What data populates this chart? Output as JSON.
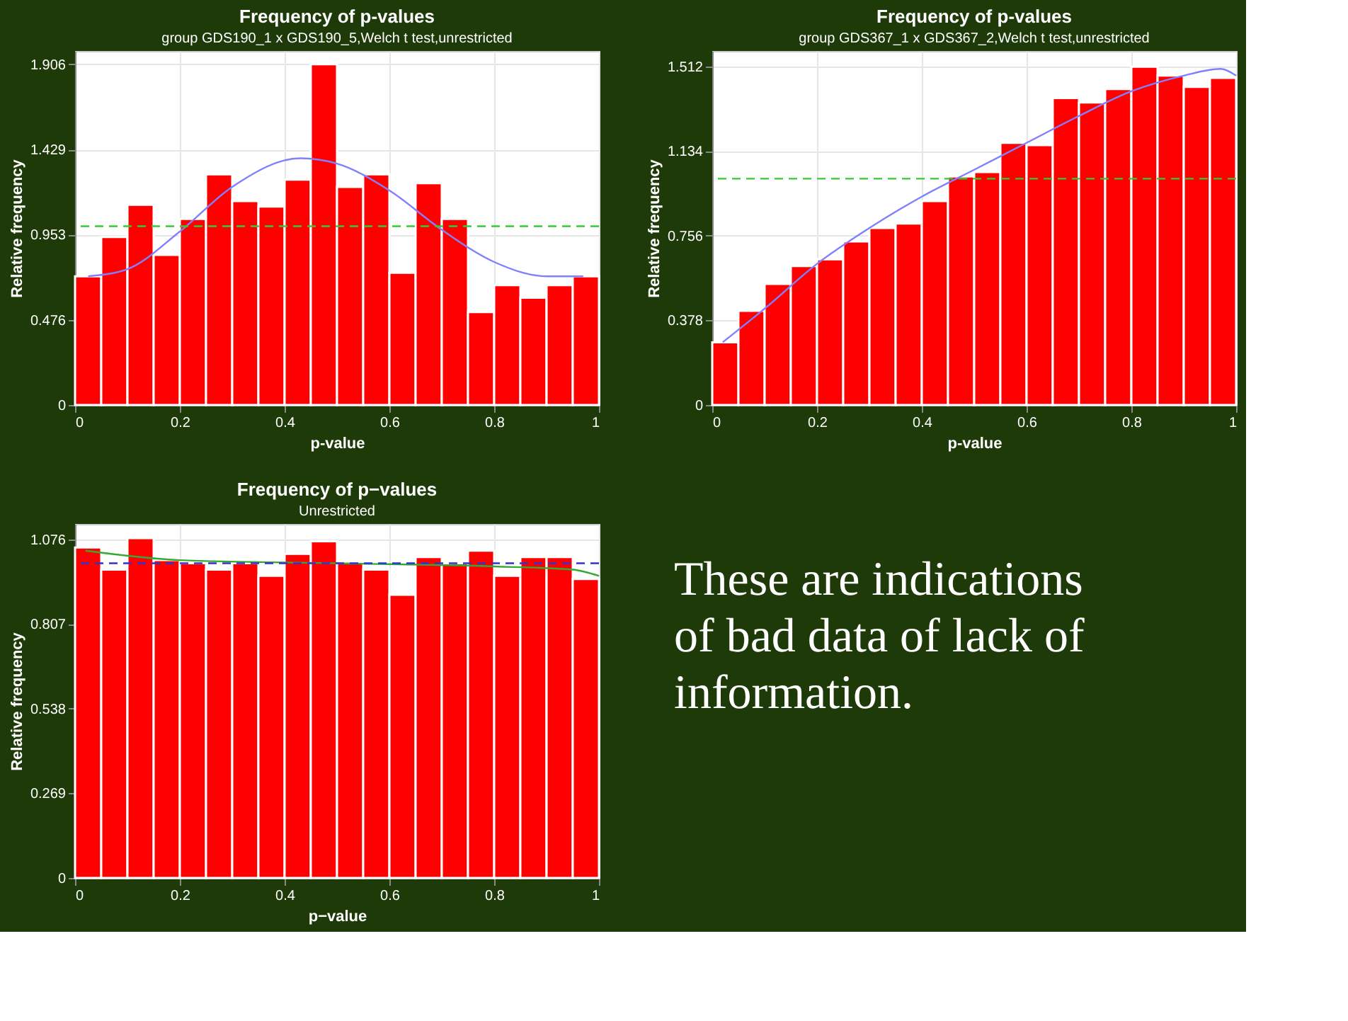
{
  "chart_data": [
    {
      "type": "histogram",
      "title": "Frequency of p-values",
      "subtitle": "group GDS190_1 x GDS190_5,Welch t test,unrestricted",
      "xlabel": "p-value",
      "ylabel": "Relative frequency",
      "bins": [
        0,
        0.05,
        0.1,
        0.15,
        0.2,
        0.25,
        0.3,
        0.35,
        0.4,
        0.45,
        0.5,
        0.55,
        0.6,
        0.65,
        0.7,
        0.75,
        0.8,
        0.85,
        0.9,
        0.95,
        1
      ],
      "series": [
        {
          "type": "histogram",
          "color": "#ff0000",
          "values": [
            0.72,
            0.94,
            1.12,
            0.84,
            1.04,
            1.29,
            1.14,
            1.11,
            1.26,
            1.906,
            1.22,
            1.29,
            0.74,
            1.24,
            1.04,
            0.52,
            0.67,
            0.6,
            0.67,
            0.72
          ]
        },
        {
          "type": "line",
          "color": "#8080ff",
          "x": [
            0.025,
            0.1,
            0.2,
            0.3,
            0.43,
            0.5,
            0.6,
            0.7,
            0.8,
            0.9,
            0.97
          ],
          "values": [
            0.72,
            0.76,
            0.97,
            1.22,
            1.38,
            1.35,
            1.2,
            0.98,
            0.8,
            0.72,
            0.72
          ]
        }
      ],
      "ref_lines": [
        {
          "axis": "y",
          "value": 1.0,
          "color": "#33cc33",
          "line_style": "dashed"
        }
      ],
      "xlim": [
        0,
        1
      ],
      "xticks": [
        0,
        0.2,
        0.4,
        0.6,
        0.8,
        1
      ],
      "ylim": [
        0,
        1.98
      ],
      "yticks": [
        0,
        0.476,
        0.953,
        1.429,
        1.906
      ],
      "grid": true
    },
    {
      "type": "histogram",
      "title": "Frequency of p-values",
      "subtitle": "group GDS367_1 x GDS367_2,Welch t test,unrestricted",
      "xlabel": "p-value",
      "ylabel": "Relative frequency",
      "bins": [
        0,
        0.05,
        0.1,
        0.15,
        0.2,
        0.25,
        0.3,
        0.35,
        0.4,
        0.45,
        0.5,
        0.55,
        0.6,
        0.65,
        0.7,
        0.75,
        0.8,
        0.85,
        0.9,
        0.95,
        1
      ],
      "series": [
        {
          "type": "histogram",
          "color": "#ff0000",
          "values": [
            0.28,
            0.42,
            0.54,
            0.62,
            0.65,
            0.73,
            0.79,
            0.81,
            0.91,
            1.02,
            1.04,
            1.17,
            1.16,
            1.37,
            1.35,
            1.41,
            1.51,
            1.47,
            1.42,
            1.46
          ]
        },
        {
          "type": "line",
          "color": "#8080ff",
          "x": [
            0.02,
            0.1,
            0.2,
            0.3,
            0.4,
            0.5,
            0.6,
            0.7,
            0.8,
            0.9,
            0.97,
            1.0
          ],
          "values": [
            0.28,
            0.43,
            0.63,
            0.79,
            0.93,
            1.05,
            1.17,
            1.29,
            1.4,
            1.47,
            1.5,
            1.47
          ]
        }
      ],
      "ref_lines": [
        {
          "axis": "y",
          "value": 1.01,
          "color": "#33cc33",
          "line_style": "dashed"
        }
      ],
      "xlim": [
        0,
        1
      ],
      "xticks": [
        0,
        0.2,
        0.4,
        0.6,
        0.8,
        1
      ],
      "ylim": [
        0,
        1.58
      ],
      "yticks": [
        0,
        0.378,
        0.756,
        1.134,
        1.512
      ],
      "grid": true
    },
    {
      "type": "histogram",
      "title": "Frequency of p−values",
      "subtitle": "Unrestricted",
      "xlabel": "p−value",
      "ylabel": "Relative frequency",
      "bins": [
        0,
        0.05,
        0.1,
        0.15,
        0.2,
        0.25,
        0.3,
        0.35,
        0.4,
        0.45,
        0.5,
        0.55,
        0.6,
        0.65,
        0.7,
        0.75,
        0.8,
        0.85,
        0.9,
        0.95,
        1
      ],
      "series": [
        {
          "type": "histogram",
          "color": "#ff0000",
          "values": [
            1.05,
            0.98,
            1.08,
            1.01,
            1.0,
            0.98,
            1.0,
            0.96,
            1.03,
            1.07,
            1.0,
            0.98,
            0.9,
            1.02,
            1.0,
            1.04,
            0.96,
            1.02,
            1.02,
            0.95
          ]
        },
        {
          "type": "line",
          "color": "#33aa33",
          "x": [
            0.02,
            0.2,
            0.5,
            0.8,
            0.95,
            1.0
          ],
          "values": [
            1.04,
            1.01,
            1.0,
            0.99,
            0.98,
            0.96
          ]
        }
      ],
      "ref_lines": [
        {
          "axis": "y",
          "value": 1.0,
          "color": "#3333cc",
          "line_style": "dashed"
        }
      ],
      "xlim": [
        0,
        1
      ],
      "xticks": [
        0,
        0.2,
        0.4,
        0.6,
        0.8,
        1
      ],
      "ylim": [
        0,
        1.125
      ],
      "yticks": [
        0,
        0.269,
        0.538,
        0.807,
        1.076
      ],
      "grid": true
    },
    {
      "type": "other",
      "annotations": [
        "These are indications of bad data of lack of information."
      ]
    }
  ]
}
